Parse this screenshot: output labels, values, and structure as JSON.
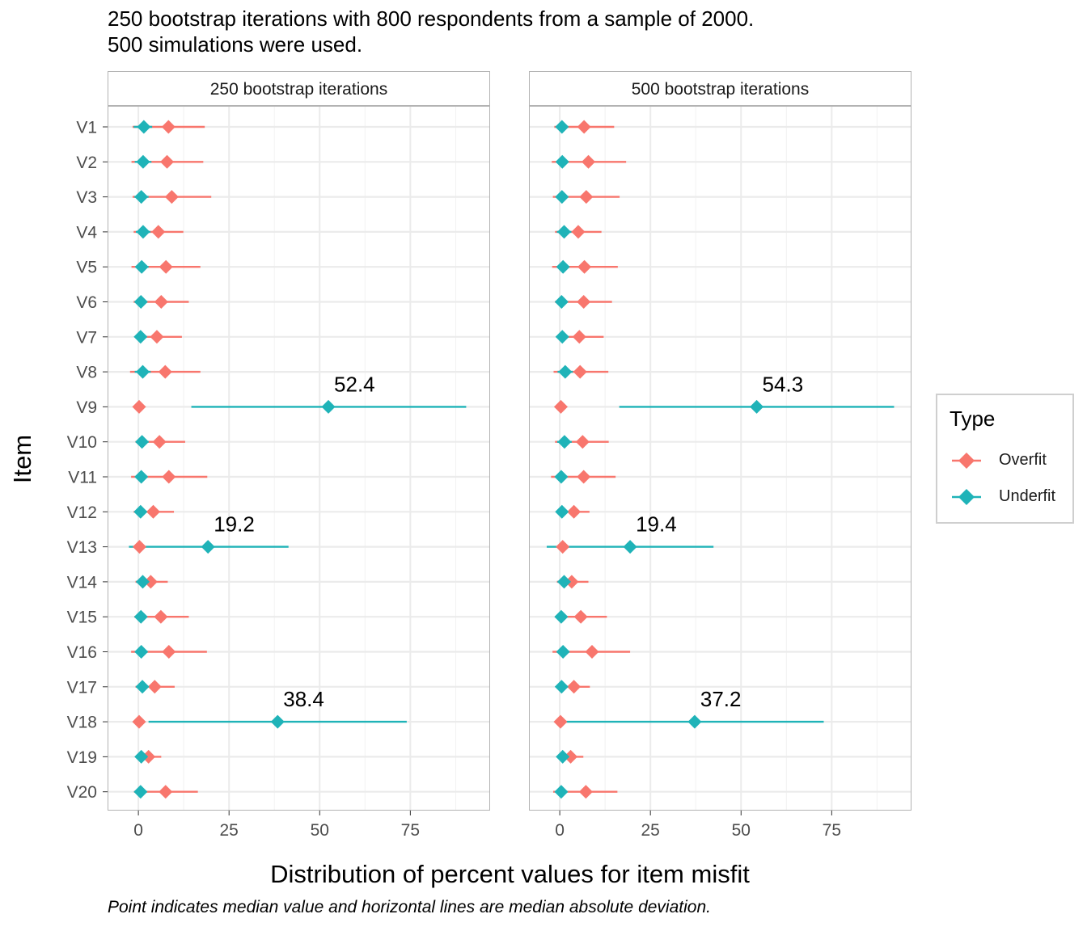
{
  "subtitle_lines": [
    "250 bootstrap iterations with 800 respondents from a sample of 2000.",
    "500 simulations were used."
  ],
  "caption": "Point indicates median value and horizontal lines are median absolute deviation.",
  "colors": {
    "overfit": "#f8766d",
    "underfit": "#1fb3b8",
    "grid": "#ebebeb",
    "panel_border": "#b3b3b3",
    "strip_border": "#b3b3b3"
  },
  "chart_data": {
    "type": "scatter",
    "x_label": "Distribution of percent values for item misfit",
    "y_label": "Item",
    "xlim": [
      -8.5,
      97
    ],
    "x_ticks": [
      0,
      25,
      50,
      75
    ],
    "categories": [
      "V1",
      "V2",
      "V3",
      "V4",
      "V5",
      "V6",
      "V7",
      "V8",
      "V9",
      "V10",
      "V11",
      "V12",
      "V13",
      "V14",
      "V15",
      "V16",
      "V17",
      "V18",
      "V19",
      "V20"
    ],
    "legend": {
      "title": "Type",
      "entries": [
        "Overfit",
        "Underfit"
      ]
    },
    "panels": [
      {
        "title": "250 bootstrap iterations",
        "series": [
          {
            "name": "Overfit",
            "median": [
              8.3,
              7.9,
              9.2,
              5.5,
              7.6,
              6.3,
              5.1,
              7.4,
              0.2,
              5.8,
              8.4,
              4.1,
              0.3,
              3.4,
              6.2,
              8.4,
              4.5,
              0.2,
              2.8,
              7.5
            ],
            "low": [
              -1.6,
              -1.9,
              -1.6,
              -1.3,
              -1.9,
              -1.3,
              -1.0,
              -2.3,
              0.0,
              -0.8,
              -2.0,
              -1.3,
              0.0,
              -0.8,
              -1.1,
              -2.0,
              -0.8,
              0.0,
              -0.6,
              -1.2
            ],
            "high": [
              18.3,
              17.9,
              20.1,
              12.4,
              17.1,
              13.9,
              12.0,
              17.1,
              0.4,
              12.9,
              19.0,
              9.8,
              0.6,
              8.1,
              13.9,
              18.9,
              10.0,
              0.4,
              6.3,
              16.4
            ]
          },
          {
            "name": "Underfit",
            "median": [
              1.5,
              1.3,
              0.8,
              1.3,
              0.9,
              0.7,
              0.6,
              1.2,
              52.4,
              1.0,
              0.8,
              0.6,
              19.2,
              1.2,
              0.7,
              0.8,
              1.1,
              38.4,
              0.8,
              0.6
            ],
            "low": [
              -1.3,
              -1.0,
              -1.1,
              -0.7,
              -0.8,
              -0.6,
              -0.6,
              -1.0,
              14.6,
              -0.6,
              -0.8,
              -0.6,
              -2.6,
              -0.6,
              -0.6,
              -0.7,
              -0.6,
              2.8,
              -0.5,
              -0.6
            ],
            "high": [
              3.8,
              3.6,
              2.8,
              3.3,
              2.8,
              2.2,
              2.0,
              3.4,
              90.4,
              2.8,
              2.4,
              1.8,
              41.4,
              3.0,
              2.2,
              2.5,
              2.8,
              74.0,
              1.9,
              1.8
            ]
          }
        ],
        "labels": [
          {
            "item": "V9",
            "text": "52.4"
          },
          {
            "item": "V13",
            "text": "19.2"
          },
          {
            "item": "V18",
            "text": "38.4"
          }
        ]
      },
      {
        "title": "500 bootstrap iterations",
        "series": [
          {
            "name": "Overfit",
            "median": [
              6.7,
              7.9,
              7.3,
              5.1,
              6.8,
              6.6,
              5.4,
              5.6,
              0.3,
              6.3,
              6.6,
              3.9,
              0.8,
              3.3,
              5.8,
              8.9,
              3.9,
              0.2,
              3.0,
              7.2
            ],
            "low": [
              -1.5,
              -2.2,
              -1.9,
              -1.3,
              -2.1,
              -1.3,
              -1.0,
              -1.7,
              0.0,
              -1.3,
              -2.4,
              -1.0,
              0.0,
              -0.8,
              -1.3,
              -2.0,
              -0.7,
              0.0,
              -0.6,
              -1.8
            ],
            "high": [
              15.0,
              18.3,
              16.5,
              11.5,
              16.0,
              14.4,
              12.1,
              13.4,
              0.5,
              13.5,
              15.4,
              8.2,
              1.4,
              7.9,
              13.0,
              19.4,
              8.3,
              0.4,
              6.5,
              15.9
            ]
          },
          {
            "name": "Underfit",
            "median": [
              0.6,
              0.7,
              0.6,
              1.2,
              0.9,
              0.5,
              0.7,
              1.5,
              54.3,
              1.3,
              0.4,
              0.6,
              19.4,
              1.2,
              0.4,
              0.9,
              0.5,
              37.2,
              0.8,
              0.4
            ],
            "low": [
              -0.6,
              -0.7,
              -0.6,
              -0.8,
              -0.7,
              -0.5,
              -0.7,
              -0.6,
              16.4,
              -0.7,
              -0.4,
              -0.6,
              -3.6,
              -0.6,
              -0.4,
              -0.8,
              -0.5,
              1.6,
              -0.6,
              -0.4
            ],
            "high": [
              1.8,
              2.1,
              1.8,
              3.2,
              2.5,
              1.5,
              2.1,
              3.6,
              92.2,
              3.3,
              1.2,
              1.8,
              42.4,
              3.0,
              1.2,
              2.6,
              1.5,
              72.8,
              2.2,
              1.2
            ]
          }
        ],
        "labels": [
          {
            "item": "V9",
            "text": "54.3"
          },
          {
            "item": "V13",
            "text": "19.4"
          },
          {
            "item": "V18",
            "text": "37.2"
          }
        ]
      }
    ]
  }
}
